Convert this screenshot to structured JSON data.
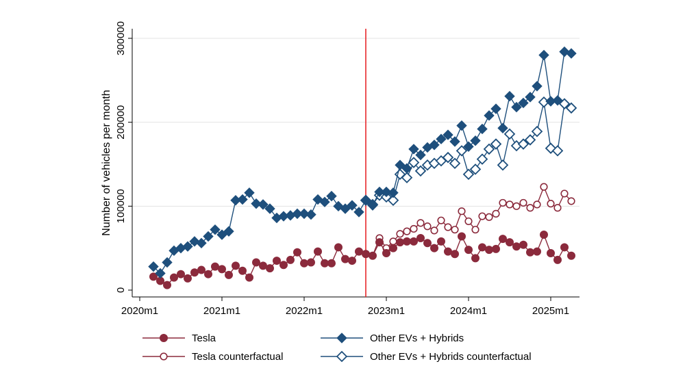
{
  "chart_data": {
    "type": "line",
    "title": "",
    "ylabel": "Number of vehicles per month",
    "xlabel": "",
    "x_start": "2020m3",
    "x_range": [
      "2020m1",
      "2025m5"
    ],
    "ylim": [
      0,
      300000
    ],
    "yticks": [
      0,
      100000,
      200000,
      300000
    ],
    "ytick_labels": [
      "0",
      "100000",
      "200000",
      "300000"
    ],
    "xticks": [
      "2020m1",
      "2021m1",
      "2022m1",
      "2023m1",
      "2024m1",
      "2025m1"
    ],
    "xtick_labels": [
      "2020m1",
      "2021m1",
      "2022m1",
      "2023m1",
      "2024m1",
      "2025m1"
    ],
    "grid": "horizontal",
    "vertical_line": {
      "x": "2022m10",
      "color": "#e8262a"
    },
    "legend_position": "bottom",
    "series": [
      {
        "name": "Other EVs + Hybrids",
        "color": "#1e4f7c",
        "marker": "filled-diamond",
        "values": [
          28000,
          20000,
          33000,
          47000,
          50000,
          52000,
          58000,
          56000,
          64000,
          72000,
          66000,
          70000,
          107000,
          108000,
          116000,
          103000,
          102000,
          97000,
          86000,
          88000,
          89000,
          91000,
          91000,
          90000,
          108000,
          105000,
          112000,
          100000,
          97000,
          101000,
          93000,
          107000,
          101000,
          117000,
          117000,
          116000,
          149000,
          145000,
          168000,
          161000,
          170000,
          173000,
          180000,
          185000,
          177000,
          196000,
          171000,
          178000,
          192000,
          208000,
          216000,
          193000,
          231000,
          218000,
          223000,
          230000,
          243000,
          280000,
          225000,
          226000,
          284000,
          282000
        ]
      },
      {
        "name": "Other EVs + Hybrids counterfactual",
        "color": "#1e4f7c",
        "marker": "hollow-diamond",
        "start_index": 31,
        "values": [
          null,
          null,
          null,
          null,
          null,
          null,
          null,
          null,
          null,
          null,
          null,
          null,
          null,
          null,
          null,
          null,
          null,
          null,
          null,
          null,
          null,
          null,
          null,
          null,
          null,
          null,
          null,
          null,
          null,
          null,
          null,
          107000,
          102000,
          113000,
          111000,
          107000,
          138000,
          134000,
          152000,
          142000,
          149000,
          151000,
          154000,
          158000,
          151000,
          166000,
          138000,
          144000,
          156000,
          168000,
          174000,
          149000,
          186000,
          172000,
          174000,
          179000,
          189000,
          224000,
          169000,
          166000,
          222000,
          217000
        ]
      },
      {
        "name": "Tesla",
        "color": "#8b2a3c",
        "marker": "filled-circle",
        "values": [
          16000,
          11000,
          6000,
          15000,
          19000,
          14000,
          21000,
          24000,
          19000,
          28000,
          25000,
          18000,
          29000,
          23000,
          15000,
          33000,
          29000,
          26000,
          35000,
          30000,
          36000,
          45000,
          32000,
          33000,
          46000,
          32000,
          32000,
          51000,
          37000,
          35000,
          46000,
          43000,
          41000,
          57000,
          44000,
          50000,
          57000,
          58000,
          58000,
          62000,
          56000,
          50000,
          58000,
          46000,
          43000,
          64000,
          48000,
          38000,
          51000,
          48000,
          49000,
          61000,
          57000,
          52000,
          54000,
          45000,
          46000,
          66000,
          44000,
          36000,
          51000,
          41000
        ]
      },
      {
        "name": "Tesla counterfactual",
        "color": "#8b2a3c",
        "marker": "hollow-circle",
        "start_index": 31,
        "values": [
          null,
          null,
          null,
          null,
          null,
          null,
          null,
          null,
          null,
          null,
          null,
          null,
          null,
          null,
          null,
          null,
          null,
          null,
          null,
          null,
          null,
          null,
          null,
          null,
          null,
          null,
          null,
          null,
          null,
          null,
          null,
          43000,
          41000,
          62000,
          50000,
          58000,
          67000,
          70000,
          73000,
          80000,
          76000,
          71000,
          83000,
          75000,
          72000,
          94000,
          82000,
          72000,
          88000,
          87000,
          91000,
          104000,
          102000,
          100000,
          104000,
          98000,
          102000,
          123000,
          103000,
          98000,
          115000,
          106000
        ]
      }
    ],
    "legend": [
      {
        "label": "Tesla",
        "series": 2
      },
      {
        "label": "Other EVs + Hybrids",
        "series": 0
      },
      {
        "label": "Tesla counterfactual",
        "series": 3
      },
      {
        "label": "Other EVs + Hybrids counterfactual",
        "series": 1
      }
    ]
  }
}
